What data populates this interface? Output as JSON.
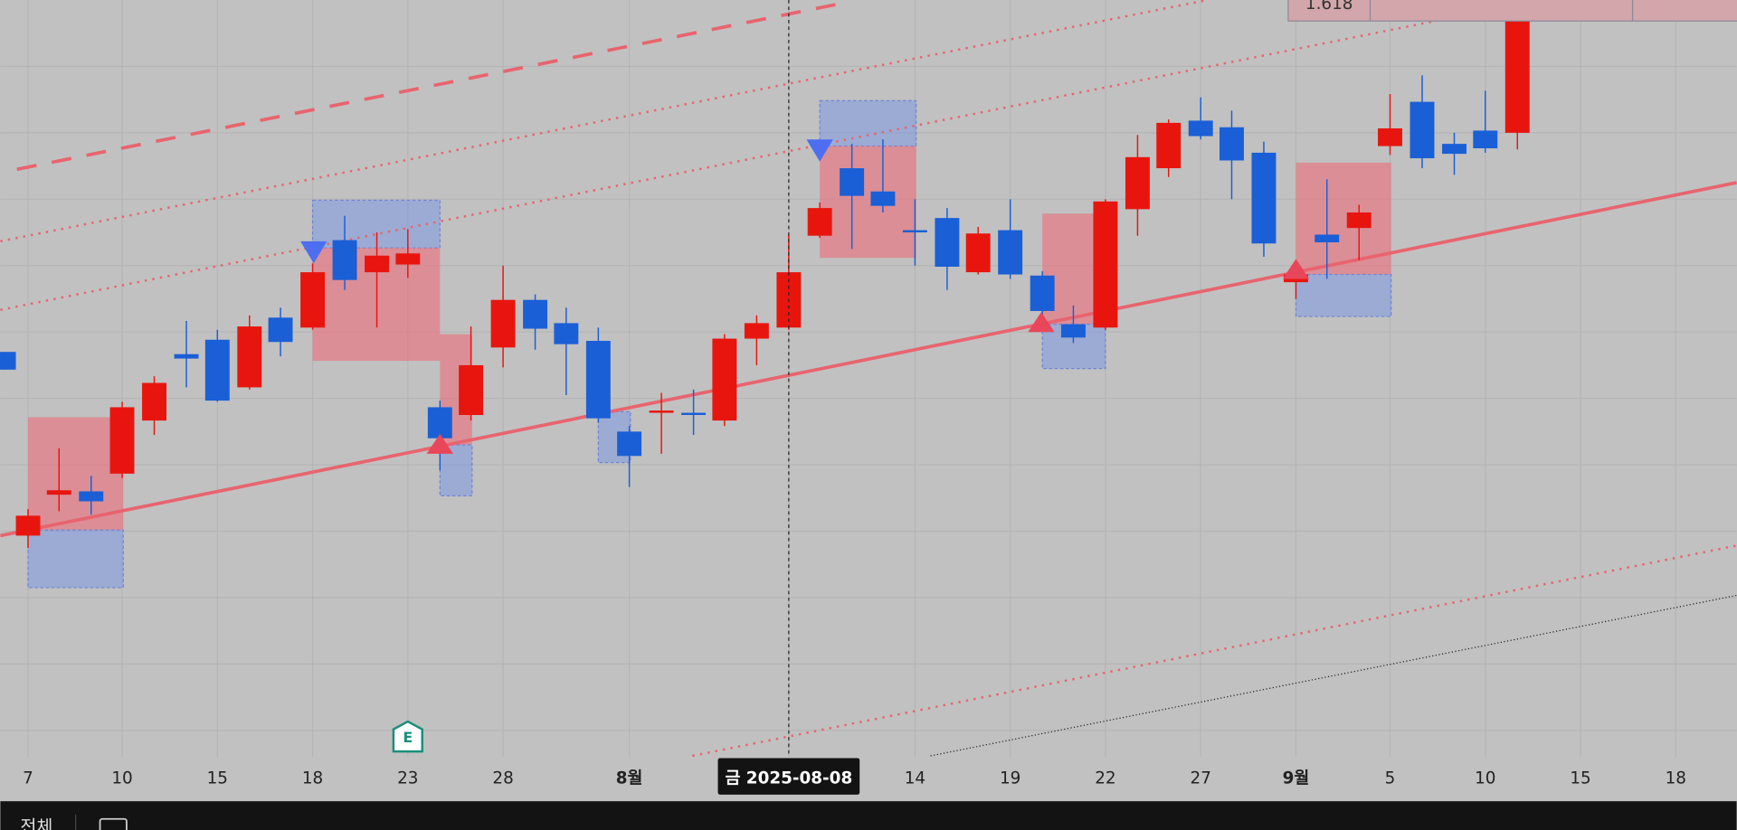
{
  "time_axis": {
    "labels": [
      "7",
      "10",
      "15",
      "18",
      "23",
      "28",
      "8월",
      "14",
      "19",
      "22",
      "27",
      "9월",
      "5",
      "10",
      "15",
      "18"
    ]
  },
  "crosshair": {
    "label": "금 2025-08-08"
  },
  "fib_level": "1.618",
  "earnings_badge": "E",
  "toolbar": {
    "range_button": "전체"
  }
}
